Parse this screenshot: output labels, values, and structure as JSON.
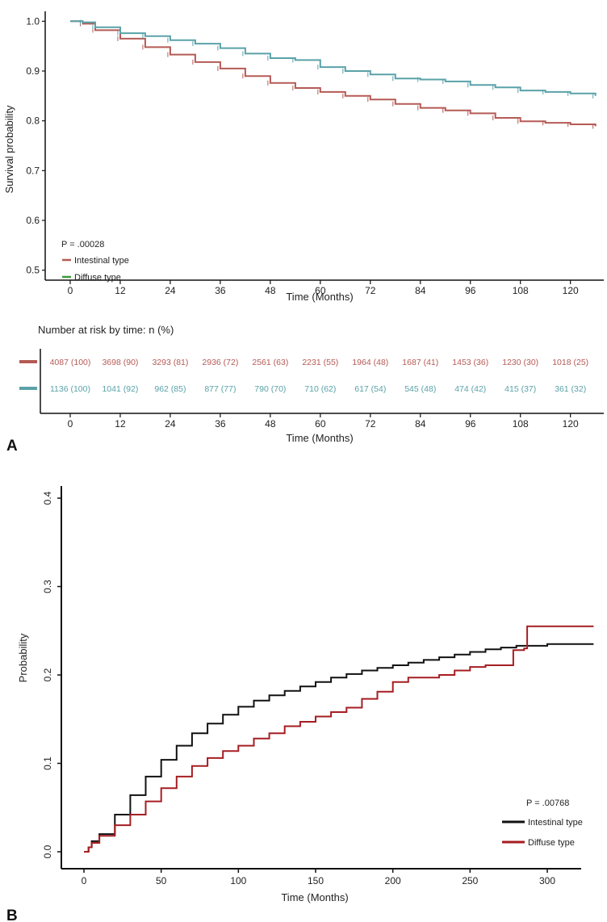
{
  "colors": {
    "intestinal_a": "#b55a55",
    "diffuse_a": "#5aa2a8",
    "diffuse_legend_a": "#3a9a3a",
    "intestinal_b": "#111111",
    "diffuse_b": "#a51e22",
    "axis": "#111111"
  },
  "panels": {
    "a_label": "A",
    "b_label": "B"
  },
  "risk_table": {
    "title": "Number at risk by time: n (%)",
    "rows": [
      {
        "group": "intestinal",
        "cells": [
          "4087 (100)",
          "3698 (90)",
          "3293 (81)",
          "2936 (72)",
          "2561 (63)",
          "2231 (55)",
          "1964 (48)",
          "1687 (41)",
          "1453 (36)",
          "1230 (30)",
          "1018 (25)"
        ]
      },
      {
        "group": "diffuse",
        "cells": [
          "1136 (100)",
          "1041 (92)",
          "962 (85)",
          "877 (77)",
          "790 (70)",
          "710 (62)",
          "617 (54)",
          "545 (48)",
          "474 (42)",
          "415 (37)",
          "361 (32)"
        ]
      }
    ],
    "xlabel": "Time (Months)",
    "xticks": [
      "0",
      "12",
      "24",
      "36",
      "48",
      "60",
      "72",
      "84",
      "96",
      "108",
      "120"
    ]
  },
  "chart_data": [
    {
      "type": "line",
      "xlabel": "Time (Months)",
      "ylabel": "Survival probability",
      "xlim": [
        -6,
        128
      ],
      "ylim": [
        0.48,
        1.02
      ],
      "xticks": [
        0,
        12,
        24,
        36,
        48,
        60,
        72,
        84,
        96,
        108,
        120
      ],
      "yticks": [
        0.5,
        0.6,
        0.7,
        0.8,
        0.9,
        1.0
      ],
      "ytick_labels": [
        "0.5",
        "0.6",
        "0.7",
        "0.8",
        "0.9",
        "1.0"
      ],
      "annotation": "P = .00028",
      "legend_position": "bottom-left",
      "series": [
        {
          "name": "Intestinal type",
          "x": [
            0,
            3,
            6,
            12,
            18,
            24,
            30,
            36,
            42,
            48,
            54,
            60,
            66,
            72,
            78,
            84,
            90,
            96,
            102,
            108,
            114,
            120,
            126
          ],
          "y": [
            1.0,
            0.995,
            0.982,
            0.965,
            0.948,
            0.933,
            0.918,
            0.905,
            0.89,
            0.876,
            0.866,
            0.858,
            0.85,
            0.843,
            0.834,
            0.826,
            0.821,
            0.815,
            0.806,
            0.799,
            0.796,
            0.793,
            0.789
          ]
        },
        {
          "name": "Diffuse type",
          "x": [
            0,
            3,
            6,
            12,
            18,
            24,
            30,
            36,
            42,
            48,
            54,
            60,
            66,
            72,
            78,
            84,
            90,
            96,
            102,
            108,
            114,
            120,
            126
          ],
          "y": [
            1.0,
            0.998,
            0.988,
            0.976,
            0.97,
            0.962,
            0.955,
            0.946,
            0.935,
            0.926,
            0.922,
            0.908,
            0.9,
            0.893,
            0.885,
            0.883,
            0.879,
            0.872,
            0.867,
            0.861,
            0.858,
            0.855,
            0.85
          ]
        }
      ]
    },
    {
      "type": "line",
      "xlabel": "Time (Months)",
      "ylabel": "Probability",
      "xlim": [
        -15,
        340
      ],
      "ylim": [
        -0.01,
        0.41
      ],
      "xticks": [
        0,
        50,
        100,
        150,
        200,
        250,
        300
      ],
      "yticks": [
        0.0,
        0.1,
        0.2,
        0.3,
        0.4
      ],
      "ytick_labels": [
        "0.0",
        "0.1",
        "0.2",
        "0.3",
        "0.4"
      ],
      "annotation": "P = .00768",
      "legend_position": "bottom-right",
      "series": [
        {
          "name": "Intestinal type",
          "x": [
            0,
            3,
            5,
            10,
            20,
            30,
            40,
            50,
            60,
            70,
            80,
            90,
            100,
            110,
            120,
            130,
            140,
            150,
            160,
            170,
            180,
            190,
            200,
            210,
            220,
            230,
            240,
            250,
            260,
            270,
            280,
            300,
            330
          ],
          "y": [
            0,
            0.005,
            0.012,
            0.02,
            0.042,
            0.064,
            0.085,
            0.104,
            0.12,
            0.134,
            0.145,
            0.155,
            0.164,
            0.171,
            0.177,
            0.182,
            0.187,
            0.192,
            0.197,
            0.201,
            0.205,
            0.208,
            0.211,
            0.214,
            0.217,
            0.22,
            0.223,
            0.226,
            0.229,
            0.231,
            0.233,
            0.235,
            0.235
          ]
        },
        {
          "name": "Diffuse type",
          "x": [
            0,
            3,
            5,
            10,
            20,
            30,
            40,
            50,
            60,
            70,
            80,
            90,
            100,
            110,
            120,
            130,
            140,
            150,
            160,
            170,
            180,
            190,
            200,
            210,
            230,
            240,
            250,
            260,
            270,
            276,
            278,
            285,
            287,
            330
          ],
          "y": [
            0,
            0.005,
            0.01,
            0.018,
            0.03,
            0.042,
            0.057,
            0.072,
            0.085,
            0.097,
            0.106,
            0.114,
            0.12,
            0.128,
            0.134,
            0.142,
            0.147,
            0.153,
            0.158,
            0.163,
            0.173,
            0.181,
            0.192,
            0.197,
            0.2,
            0.205,
            0.209,
            0.211,
            0.211,
            0.211,
            0.228,
            0.23,
            0.255,
            0.255
          ]
        }
      ]
    }
  ]
}
